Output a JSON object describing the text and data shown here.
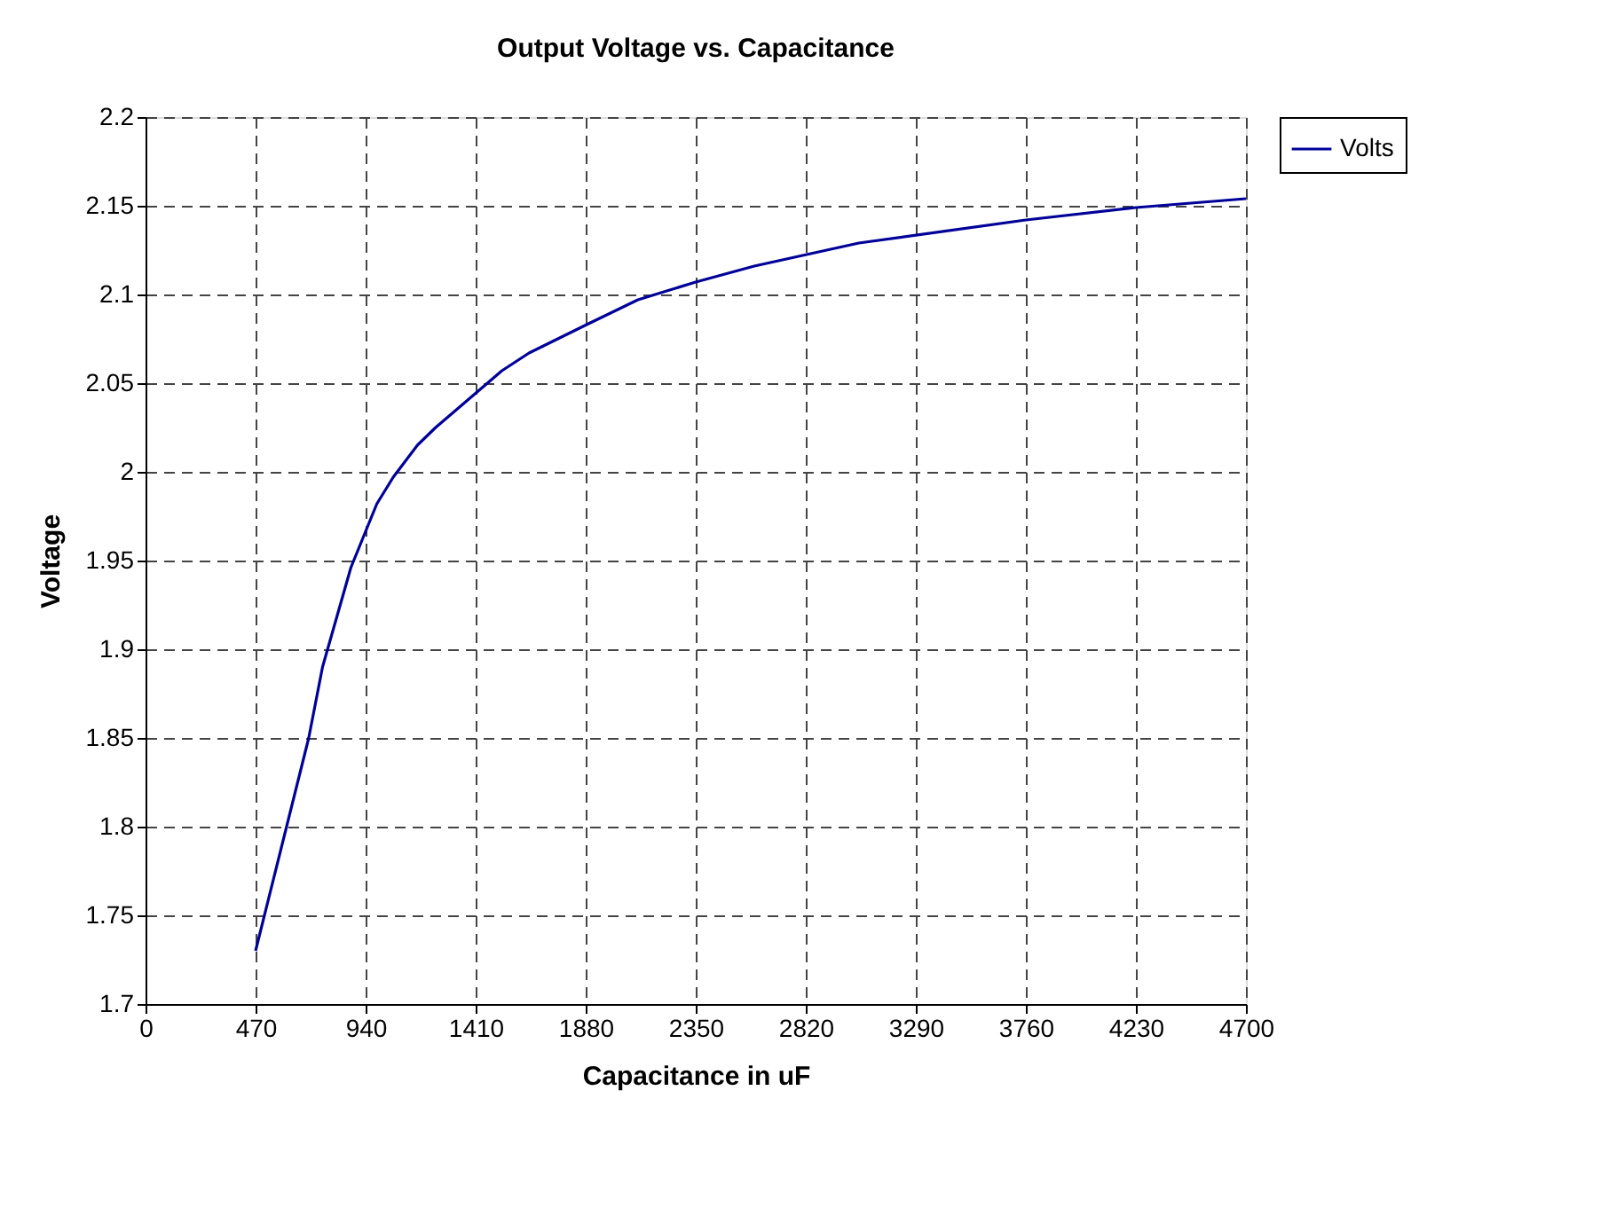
{
  "chart_data": {
    "type": "line",
    "title": "Output Voltage vs. Capacitance",
    "xlabel": "Capacitance in uF",
    "ylabel": "Voltage",
    "x": [
      470,
      697,
      756,
      877,
      988,
      1058,
      1161,
      1239,
      1522,
      1638,
      1884,
      2103,
      2350,
      2600,
      3047,
      3760,
      4230,
      4700
    ],
    "series": [
      {
        "name": "Volts",
        "color": "#000099",
        "values": [
          1.73,
          1.85,
          1.89,
          1.946,
          1.982,
          1.997,
          2.015,
          2.025,
          2.057,
          2.067,
          2.083,
          2.097,
          2.107,
          2.116,
          2.129,
          2.142,
          2.149,
          2.154
        ]
      }
    ],
    "xlim": [
      0,
      4700
    ],
    "xticks": [
      0,
      470,
      940,
      1410,
      1880,
      2350,
      2820,
      3290,
      3760,
      4230,
      4700
    ],
    "ylim": [
      1.7,
      2.2
    ],
    "yticks": [
      1.7,
      1.75,
      1.8,
      1.85,
      1.9,
      1.95,
      2,
      2.05,
      2.1,
      2.15,
      2.2
    ],
    "grid": true,
    "legend": "right",
    "marker": "none",
    "line_style": "solid"
  }
}
